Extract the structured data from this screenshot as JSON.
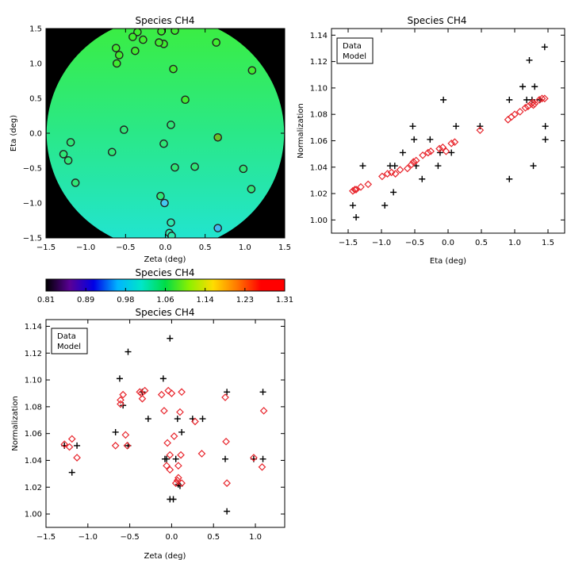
{
  "chart_data": [
    {
      "id": "map",
      "type": "heatmap",
      "title": "Species CH4",
      "xlabel": "Zeta (deg)",
      "ylabel": "Eta (deg)",
      "xlim": [
        -1.5,
        1.5
      ],
      "ylim": [
        -1.5,
        1.5
      ],
      "xticks": [
        -1.5,
        -1.0,
        -0.5,
        0.0,
        0.5,
        1.0,
        1.5
      ],
      "yticks": [
        -1.5,
        -1.0,
        -0.5,
        0.0,
        0.5,
        1.0,
        1.5
      ],
      "xtick_labels": [
        "−1.5",
        "−1.0",
        "−0.5",
        "0.0",
        "0.5",
        "1.0",
        "1.5"
      ],
      "ytick_labels": [
        "−1.5",
        "−1.0",
        "−0.5",
        "0.0",
        "0.5",
        "1.0",
        "1.5"
      ],
      "field_radius_deg": 1.5,
      "background_color": "#000000",
      "field_colors": {
        "top": "#3cee3c",
        "middle": "#2ae888",
        "bottom": "#21e4d6"
      },
      "points": [
        {
          "zeta": -0.35,
          "eta": 1.45,
          "color": "#40ee30"
        },
        {
          "zeta": -0.05,
          "eta": 1.46,
          "color": "#40ee30"
        },
        {
          "zeta": 0.12,
          "eta": 1.47,
          "color": "#40ee30"
        },
        {
          "zeta": -0.41,
          "eta": 1.38,
          "color": "#40ee30"
        },
        {
          "zeta": -0.28,
          "eta": 1.34,
          "color": "#40ee30"
        },
        {
          "zeta": -0.62,
          "eta": 1.22,
          "color": "#40ee30"
        },
        {
          "zeta": -0.38,
          "eta": 1.18,
          "color": "#40ee30"
        },
        {
          "zeta": -0.02,
          "eta": 1.28,
          "color": "#40ee30"
        },
        {
          "zeta": -0.08,
          "eta": 1.3,
          "color": "#40ee30"
        },
        {
          "zeta": -0.58,
          "eta": 1.12,
          "color": "#40ee30"
        },
        {
          "zeta": -0.61,
          "eta": 1.0,
          "color": "#40ee30"
        },
        {
          "zeta": 0.64,
          "eta": 1.3,
          "color": "#40ee30"
        },
        {
          "zeta": 0.1,
          "eta": 0.92,
          "color": "#40ee30"
        },
        {
          "zeta": 1.09,
          "eta": 0.9,
          "color": "#40ee30"
        },
        {
          "zeta": 0.25,
          "eta": 0.48,
          "color": "#40ee30"
        },
        {
          "zeta": 0.07,
          "eta": 0.12,
          "color": "#30e878"
        },
        {
          "zeta": -0.52,
          "eta": 0.05,
          "color": "#30e878"
        },
        {
          "zeta": 0.66,
          "eta": -0.06,
          "color": "#6cc028"
        },
        {
          "zeta": -1.19,
          "eta": -0.13,
          "color": "#30e878"
        },
        {
          "zeta": -0.02,
          "eta": -0.15,
          "color": "#30e878"
        },
        {
          "zeta": -1.28,
          "eta": -0.3,
          "color": "#30e878"
        },
        {
          "zeta": -0.67,
          "eta": -0.27,
          "color": "#30e878"
        },
        {
          "zeta": -1.22,
          "eta": -0.39,
          "color": "#30e878"
        },
        {
          "zeta": 0.12,
          "eta": -0.49,
          "color": "#30e878"
        },
        {
          "zeta": 0.37,
          "eta": -0.48,
          "color": "#30e878"
        },
        {
          "zeta": 0.98,
          "eta": -0.51,
          "color": "#30e878"
        },
        {
          "zeta": -1.13,
          "eta": -0.71,
          "color": "#30e878"
        },
        {
          "zeta": 1.08,
          "eta": -0.8,
          "color": "#30e878"
        },
        {
          "zeta": -0.06,
          "eta": -0.9,
          "color": "#30e878"
        },
        {
          "zeta": -0.01,
          "eta": -1.0,
          "color": "#44c8f0"
        },
        {
          "zeta": 0.07,
          "eta": -1.28,
          "color": "#30e8b0"
        },
        {
          "zeta": 0.05,
          "eta": -1.43,
          "color": "#30e8b0"
        },
        {
          "zeta": 0.08,
          "eta": -1.47,
          "color": "#30e8b0"
        },
        {
          "zeta": 0.66,
          "eta": -1.36,
          "color": "#44b8f0"
        }
      ]
    },
    {
      "id": "colorbar",
      "type": "heatmap",
      "title": "Species CH4",
      "range": [
        0.81,
        1.31
      ],
      "tick_labels": [
        "0.81",
        "0.89",
        "0.98",
        "1.06",
        "1.14",
        "1.23",
        "1.31"
      ],
      "colors": [
        "#000000",
        "#5a0096",
        "#0000e6",
        "#00b4ff",
        "#00e6c8",
        "#00dc46",
        "#8cf000",
        "#ffdc00",
        "#ff7800",
        "#ff0000",
        "#ff0000"
      ]
    },
    {
      "id": "eta-plot",
      "type": "scatter",
      "title": "Species CH4",
      "xlabel": "Eta (deg)",
      "ylabel": "Normalization",
      "xlim": [
        -1.75,
        1.75
      ],
      "ylim": [
        0.99,
        1.145
      ],
      "xticks": [
        -1.5,
        -1.0,
        -0.5,
        0.0,
        0.5,
        1.0,
        1.5
      ],
      "yticks": [
        1.0,
        1.02,
        1.04,
        1.06,
        1.08,
        1.1,
        1.12,
        1.14
      ],
      "xtick_labels": [
        "−1.5",
        "−1.0",
        "−0.5",
        "0.0",
        "0.5",
        "1.0",
        "1.5"
      ],
      "ytick_labels": [
        "1.00",
        "1.02",
        "1.04",
        "1.06",
        "1.08",
        "1.10",
        "1.12",
        "1.14"
      ],
      "legend": {
        "position": "top-left",
        "entries": [
          {
            "label": "Data",
            "color": "#000000"
          },
          {
            "label": "Model",
            "color": "#e8262d"
          }
        ]
      },
      "series": [
        {
          "name": "Data",
          "marker": "plus",
          "color": "#000000",
          "points": [
            [
              -1.43,
              1.011
            ],
            [
              -1.38,
              1.002
            ],
            [
              -1.28,
              1.041
            ],
            [
              -0.95,
              1.011
            ],
            [
              -0.87,
              1.041
            ],
            [
              -0.8,
              1.041
            ],
            [
              -0.82,
              1.021
            ],
            [
              -0.68,
              1.051
            ],
            [
              -0.53,
              1.071
            ],
            [
              -0.51,
              1.061
            ],
            [
              -0.48,
              1.041
            ],
            [
              -0.39,
              1.031
            ],
            [
              -0.27,
              1.061
            ],
            [
              -0.15,
              1.041
            ],
            [
              -0.12,
              1.051
            ],
            [
              -0.07,
              1.091
            ],
            [
              0.05,
              1.051
            ],
            [
              0.12,
              1.071
            ],
            [
              0.48,
              1.071
            ],
            [
              0.92,
              1.091
            ],
            [
              0.92,
              1.031
            ],
            [
              1.12,
              1.101
            ],
            [
              1.18,
              1.091
            ],
            [
              1.22,
              1.121
            ],
            [
              1.26,
              1.091
            ],
            [
              1.28,
              1.041
            ],
            [
              1.3,
              1.101
            ],
            [
              1.38,
              1.091
            ],
            [
              1.45,
              1.131
            ],
            [
              1.46,
              1.071
            ],
            [
              1.46,
              1.061
            ]
          ]
        },
        {
          "name": "Model",
          "marker": "diamond",
          "color": "#e8262d",
          "points": [
            [
              -1.43,
              1.022
            ],
            [
              -1.4,
              1.023
            ],
            [
              -1.38,
              1.023
            ],
            [
              -1.31,
              1.025
            ],
            [
              -1.2,
              1.027
            ],
            [
              -0.99,
              1.033
            ],
            [
              -0.91,
              1.035
            ],
            [
              -0.85,
              1.036
            ],
            [
              -0.79,
              1.035
            ],
            [
              -0.72,
              1.038
            ],
            [
              -0.61,
              1.039
            ],
            [
              -0.55,
              1.042
            ],
            [
              -0.52,
              1.044
            ],
            [
              -0.48,
              1.045
            ],
            [
              -0.38,
              1.049
            ],
            [
              -0.3,
              1.051
            ],
            [
              -0.26,
              1.052
            ],
            [
              -0.13,
              1.054
            ],
            [
              -0.08,
              1.055
            ],
            [
              -0.03,
              1.052
            ],
            [
              0.05,
              1.058
            ],
            [
              0.1,
              1.059
            ],
            [
              0.48,
              1.068
            ],
            [
              0.9,
              1.076
            ],
            [
              0.95,
              1.078
            ],
            [
              1.0,
              1.08
            ],
            [
              1.08,
              1.082
            ],
            [
              1.16,
              1.085
            ],
            [
              1.2,
              1.086
            ],
            [
              1.25,
              1.088
            ],
            [
              1.27,
              1.089
            ],
            [
              1.28,
              1.087
            ],
            [
              1.3,
              1.088
            ],
            [
              1.37,
              1.091
            ],
            [
              1.41,
              1.092
            ],
            [
              1.45,
              1.092
            ]
          ]
        }
      ]
    },
    {
      "id": "zeta-plot",
      "type": "scatter",
      "title": "Species CH4",
      "xlabel": "Zeta (deg)",
      "ylabel": "Normalization",
      "xlim": [
        -1.5,
        1.35
      ],
      "ylim": [
        0.99,
        1.145
      ],
      "xticks": [
        -1.5,
        -1.0,
        -0.5,
        0.0,
        0.5,
        1.0
      ],
      "yticks": [
        1.0,
        1.02,
        1.04,
        1.06,
        1.08,
        1.1,
        1.12,
        1.14
      ],
      "xtick_labels": [
        "−1.5",
        "−1.0",
        "−0.5",
        "0.0",
        "0.5",
        "1.0"
      ],
      "ytick_labels": [
        "1.00",
        "1.02",
        "1.04",
        "1.06",
        "1.08",
        "1.10",
        "1.12",
        "1.14"
      ],
      "legend": {
        "position": "top-left",
        "entries": [
          {
            "label": "Data",
            "color": "#000000"
          },
          {
            "label": "Model",
            "color": "#e8262d"
          }
        ]
      },
      "series": [
        {
          "name": "Data",
          "marker": "plus",
          "color": "#000000",
          "points": [
            [
              -1.28,
              1.051
            ],
            [
              -1.19,
              1.031
            ],
            [
              -1.13,
              1.051
            ],
            [
              -0.67,
              1.061
            ],
            [
              -0.62,
              1.101
            ],
            [
              -0.58,
              1.081
            ],
            [
              -0.52,
              1.051
            ],
            [
              -0.52,
              1.121
            ],
            [
              -0.35,
              1.091
            ],
            [
              -0.28,
              1.071
            ],
            [
              -0.1,
              1.101
            ],
            [
              -0.08,
              1.041
            ],
            [
              -0.06,
              1.041
            ],
            [
              -0.02,
              1.011
            ],
            [
              -0.02,
              1.131
            ],
            [
              0.02,
              1.011
            ],
            [
              0.05,
              1.041
            ],
            [
              0.07,
              1.071
            ],
            [
              0.08,
              1.022
            ],
            [
              0.1,
              1.021
            ],
            [
              0.12,
              1.061
            ],
            [
              0.25,
              1.071
            ],
            [
              0.37,
              1.071
            ],
            [
              0.64,
              1.041
            ],
            [
              0.66,
              1.091
            ],
            [
              0.66,
              1.002
            ],
            [
              0.98,
              1.041
            ],
            [
              1.09,
              1.041
            ],
            [
              1.09,
              1.091
            ]
          ]
        },
        {
          "name": "Model",
          "marker": "diamond",
          "color": "#e8262d",
          "points": [
            [
              -1.28,
              1.052
            ],
            [
              -1.22,
              1.05
            ],
            [
              -1.19,
              1.056
            ],
            [
              -1.13,
              1.042
            ],
            [
              -0.67,
              1.051
            ],
            [
              -0.61,
              1.082
            ],
            [
              -0.61,
              1.085
            ],
            [
              -0.58,
              1.089
            ],
            [
              -0.55,
              1.059
            ],
            [
              -0.53,
              1.051
            ],
            [
              -0.38,
              1.091
            ],
            [
              -0.36,
              1.09
            ],
            [
              -0.35,
              1.086
            ],
            [
              -0.32,
              1.092
            ],
            [
              -0.12,
              1.089
            ],
            [
              -0.09,
              1.077
            ],
            [
              -0.06,
              1.036
            ],
            [
              -0.05,
              1.053
            ],
            [
              -0.04,
              1.092
            ],
            [
              -0.02,
              1.033
            ],
            [
              -0.02,
              1.044
            ],
            [
              0.0,
              1.09
            ],
            [
              0.03,
              1.058
            ],
            [
              0.05,
              1.023
            ],
            [
              0.07,
              1.025
            ],
            [
              0.08,
              1.036
            ],
            [
              0.08,
              1.027
            ],
            [
              0.1,
              1.076
            ],
            [
              0.11,
              1.044
            ],
            [
              0.12,
              1.023
            ],
            [
              0.12,
              1.091
            ],
            [
              0.28,
              1.069
            ],
            [
              0.36,
              1.045
            ],
            [
              0.64,
              1.087
            ],
            [
              0.65,
              1.054
            ],
            [
              0.66,
              1.023
            ],
            [
              0.98,
              1.042
            ],
            [
              1.08,
              1.035
            ],
            [
              1.1,
              1.077
            ]
          ]
        }
      ]
    }
  ]
}
